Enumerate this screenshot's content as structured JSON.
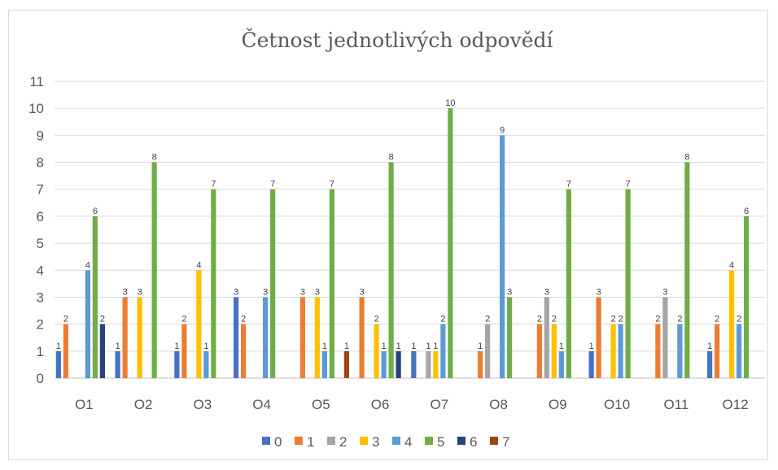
{
  "chart_data": {
    "type": "bar",
    "title": "Četnost jednotlivých odpovědí",
    "xlabel": "",
    "ylabel": "",
    "categories": [
      "O1",
      "O2",
      "O3",
      "O4",
      "O5",
      "O6",
      "O7",
      "O8",
      "O9",
      "O10",
      "O11",
      "O12"
    ],
    "ylim": [
      0,
      11
    ],
    "yticks": [
      0,
      1,
      2,
      3,
      4,
      5,
      6,
      7,
      8,
      9,
      10,
      11
    ],
    "grid": true,
    "legend_position": "bottom",
    "series": [
      {
        "name": "0",
        "color": "#4472c4",
        "values": [
          1,
          1,
          1,
          3,
          0,
          0,
          1,
          0,
          0,
          1,
          0,
          1
        ]
      },
      {
        "name": "1",
        "color": "#ed7d31",
        "values": [
          2,
          3,
          2,
          2,
          3,
          3,
          0,
          1,
          2,
          3,
          2,
          2
        ]
      },
      {
        "name": "2",
        "color": "#a5a5a5",
        "values": [
          0,
          0,
          0,
          0,
          0,
          0,
          1,
          2,
          3,
          0,
          3,
          0
        ]
      },
      {
        "name": "3",
        "color": "#ffc000",
        "values": [
          0,
          3,
          4,
          0,
          3,
          2,
          1,
          0,
          2,
          2,
          0,
          4
        ]
      },
      {
        "name": "4",
        "color": "#5b9bd5",
        "values": [
          4,
          0,
          1,
          3,
          1,
          1,
          2,
          9,
          1,
          2,
          2,
          2
        ]
      },
      {
        "name": "5",
        "color": "#70ad47",
        "values": [
          6,
          8,
          7,
          7,
          7,
          8,
          10,
          3,
          7,
          7,
          8,
          6
        ]
      },
      {
        "name": "6",
        "color": "#264478",
        "values": [
          2,
          0,
          0,
          0,
          0,
          1,
          0,
          0,
          0,
          0,
          0,
          0
        ]
      },
      {
        "name": "7",
        "color": "#9e480e",
        "values": [
          0,
          0,
          0,
          0,
          1,
          0,
          0,
          0,
          0,
          0,
          0,
          0
        ]
      }
    ]
  }
}
